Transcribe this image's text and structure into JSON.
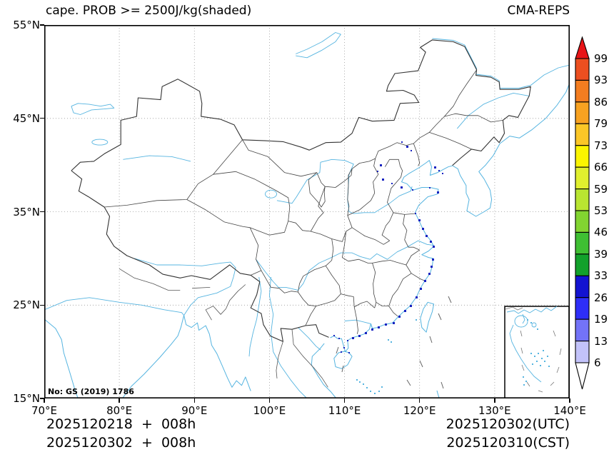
{
  "header": {
    "title": "cape. PROB >= 2500J/kg(shaded)",
    "source": "CMA-REPS"
  },
  "map": {
    "note": "No: GS (2019) 1786",
    "region": "China",
    "inset": "South China Sea"
  },
  "x_axis": {
    "labels": [
      "70°E",
      "80°E",
      "90°E",
      "100°E",
      "110°E",
      "120°E",
      "130°E",
      "140°E"
    ]
  },
  "y_axis": {
    "labels": [
      "55°N",
      "45°N",
      "35°N",
      "25°N",
      "15°N"
    ]
  },
  "colorbar": {
    "levels": [
      "99",
      "93",
      "86",
      "79",
      "73",
      "66",
      "59",
      "53",
      "46",
      "39",
      "33",
      "26",
      "19",
      "13",
      "6"
    ],
    "colors": [
      "#ec4f20",
      "#f37d20",
      "#f8a221",
      "#fbc727",
      "#fbf500",
      "#e0ef2e",
      "#b9e531",
      "#82d431",
      "#3fbf33",
      "#12a12b",
      "#1313d1",
      "#2e2ef8",
      "#7373f8",
      "#c3c3fa"
    ],
    "over_color": "#e81417",
    "under_color": "#ffffff"
  },
  "footer": {
    "init_line1": "2025120218  +  008h",
    "init_line2": "2025120302  +  008h",
    "valid_line1": "2025120302(UTC)",
    "valid_line2": "2025120310(CST)"
  },
  "style_colors": {
    "coast_river": "#55b4e0",
    "border": "#3c3c3c",
    "shading_low_prob": "#1722c0",
    "gridline": "#9a9a9a"
  }
}
